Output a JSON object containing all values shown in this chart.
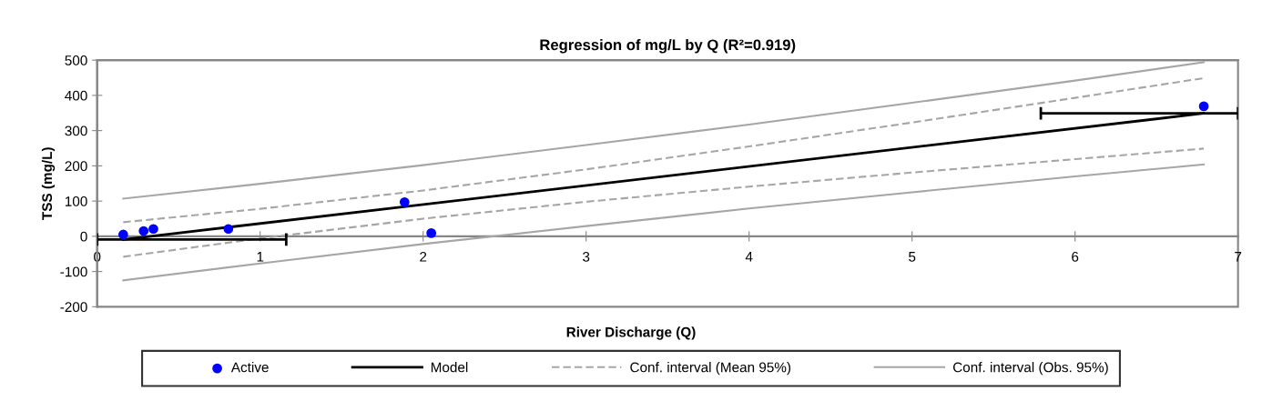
{
  "chart_data": {
    "type": "scatter",
    "title": "Regression of mg/L by Q (R²=0.919)",
    "xlabel": "River Discharge (Q)",
    "ylabel": "TSS (mg/L)",
    "xlim": [
      0,
      7
    ],
    "xticks": [
      0,
      1,
      2,
      3,
      4,
      5,
      6,
      7
    ],
    "ylim": [
      -200,
      500
    ],
    "yticks": [
      -200,
      -100,
      0,
      100,
      200,
      300,
      400,
      500
    ],
    "grid": false,
    "legend": "bottom",
    "marker": "circle",
    "series": [
      {
        "name": "Active",
        "color": "#0000ff",
        "x": [
          0.16,
          0.285,
          0.345,
          0.805,
          1.886,
          2.05,
          6.79
        ],
        "values": [
          5,
          15,
          21,
          21,
          97,
          9,
          369
        ]
      },
      {
        "name": "Model",
        "type": "line",
        "marker": "none",
        "line_style": "solid",
        "color": "#000000",
        "x": [
          0.16,
          6.79
        ],
        "values": [
          -9,
          349
        ],
        "xerrors": [
          [
            0,
            1.16
          ],
          [
            5.79,
            7
          ]
        ]
      },
      {
        "name": "Conf. interval (Mean 95%)",
        "type": "line",
        "marker": "none",
        "line_style": "dashed",
        "color": "#a6a6a6",
        "x": [
          0.16,
          1,
          2,
          3,
          4,
          5,
          6,
          6.79
        ],
        "values": [
          40,
          78,
          130,
          190,
          255,
          323,
          393,
          449
        ]
      },
      {
        "type": "line",
        "marker": "none",
        "line_style": "dashed",
        "color": "#a6a6a6",
        "x": [
          0.16,
          1,
          2,
          3,
          4,
          5,
          6,
          6.79
        ],
        "values": [
          -58,
          -6,
          50,
          98,
          141,
          181,
          219,
          249
        ]
      },
      {
        "name": "Conf. interval (Obs. 95%)",
        "type": "line",
        "marker": "none",
        "line_style": "solid",
        "color": "#a6a6a6",
        "x": [
          0.16,
          1,
          2,
          3,
          4,
          5,
          6,
          6.79
        ],
        "values": [
          107,
          149,
          202,
          259,
          317,
          379,
          442,
          494
        ]
      },
      {
        "type": "line",
        "marker": "none",
        "line_style": "solid",
        "color": "#a6a6a6",
        "x": [
          0.16,
          1,
          2,
          3,
          4,
          5,
          6,
          6.79
        ],
        "values": [
          -125,
          -77,
          -22,
          29,
          79,
          125,
          170,
          204
        ]
      }
    ]
  }
}
